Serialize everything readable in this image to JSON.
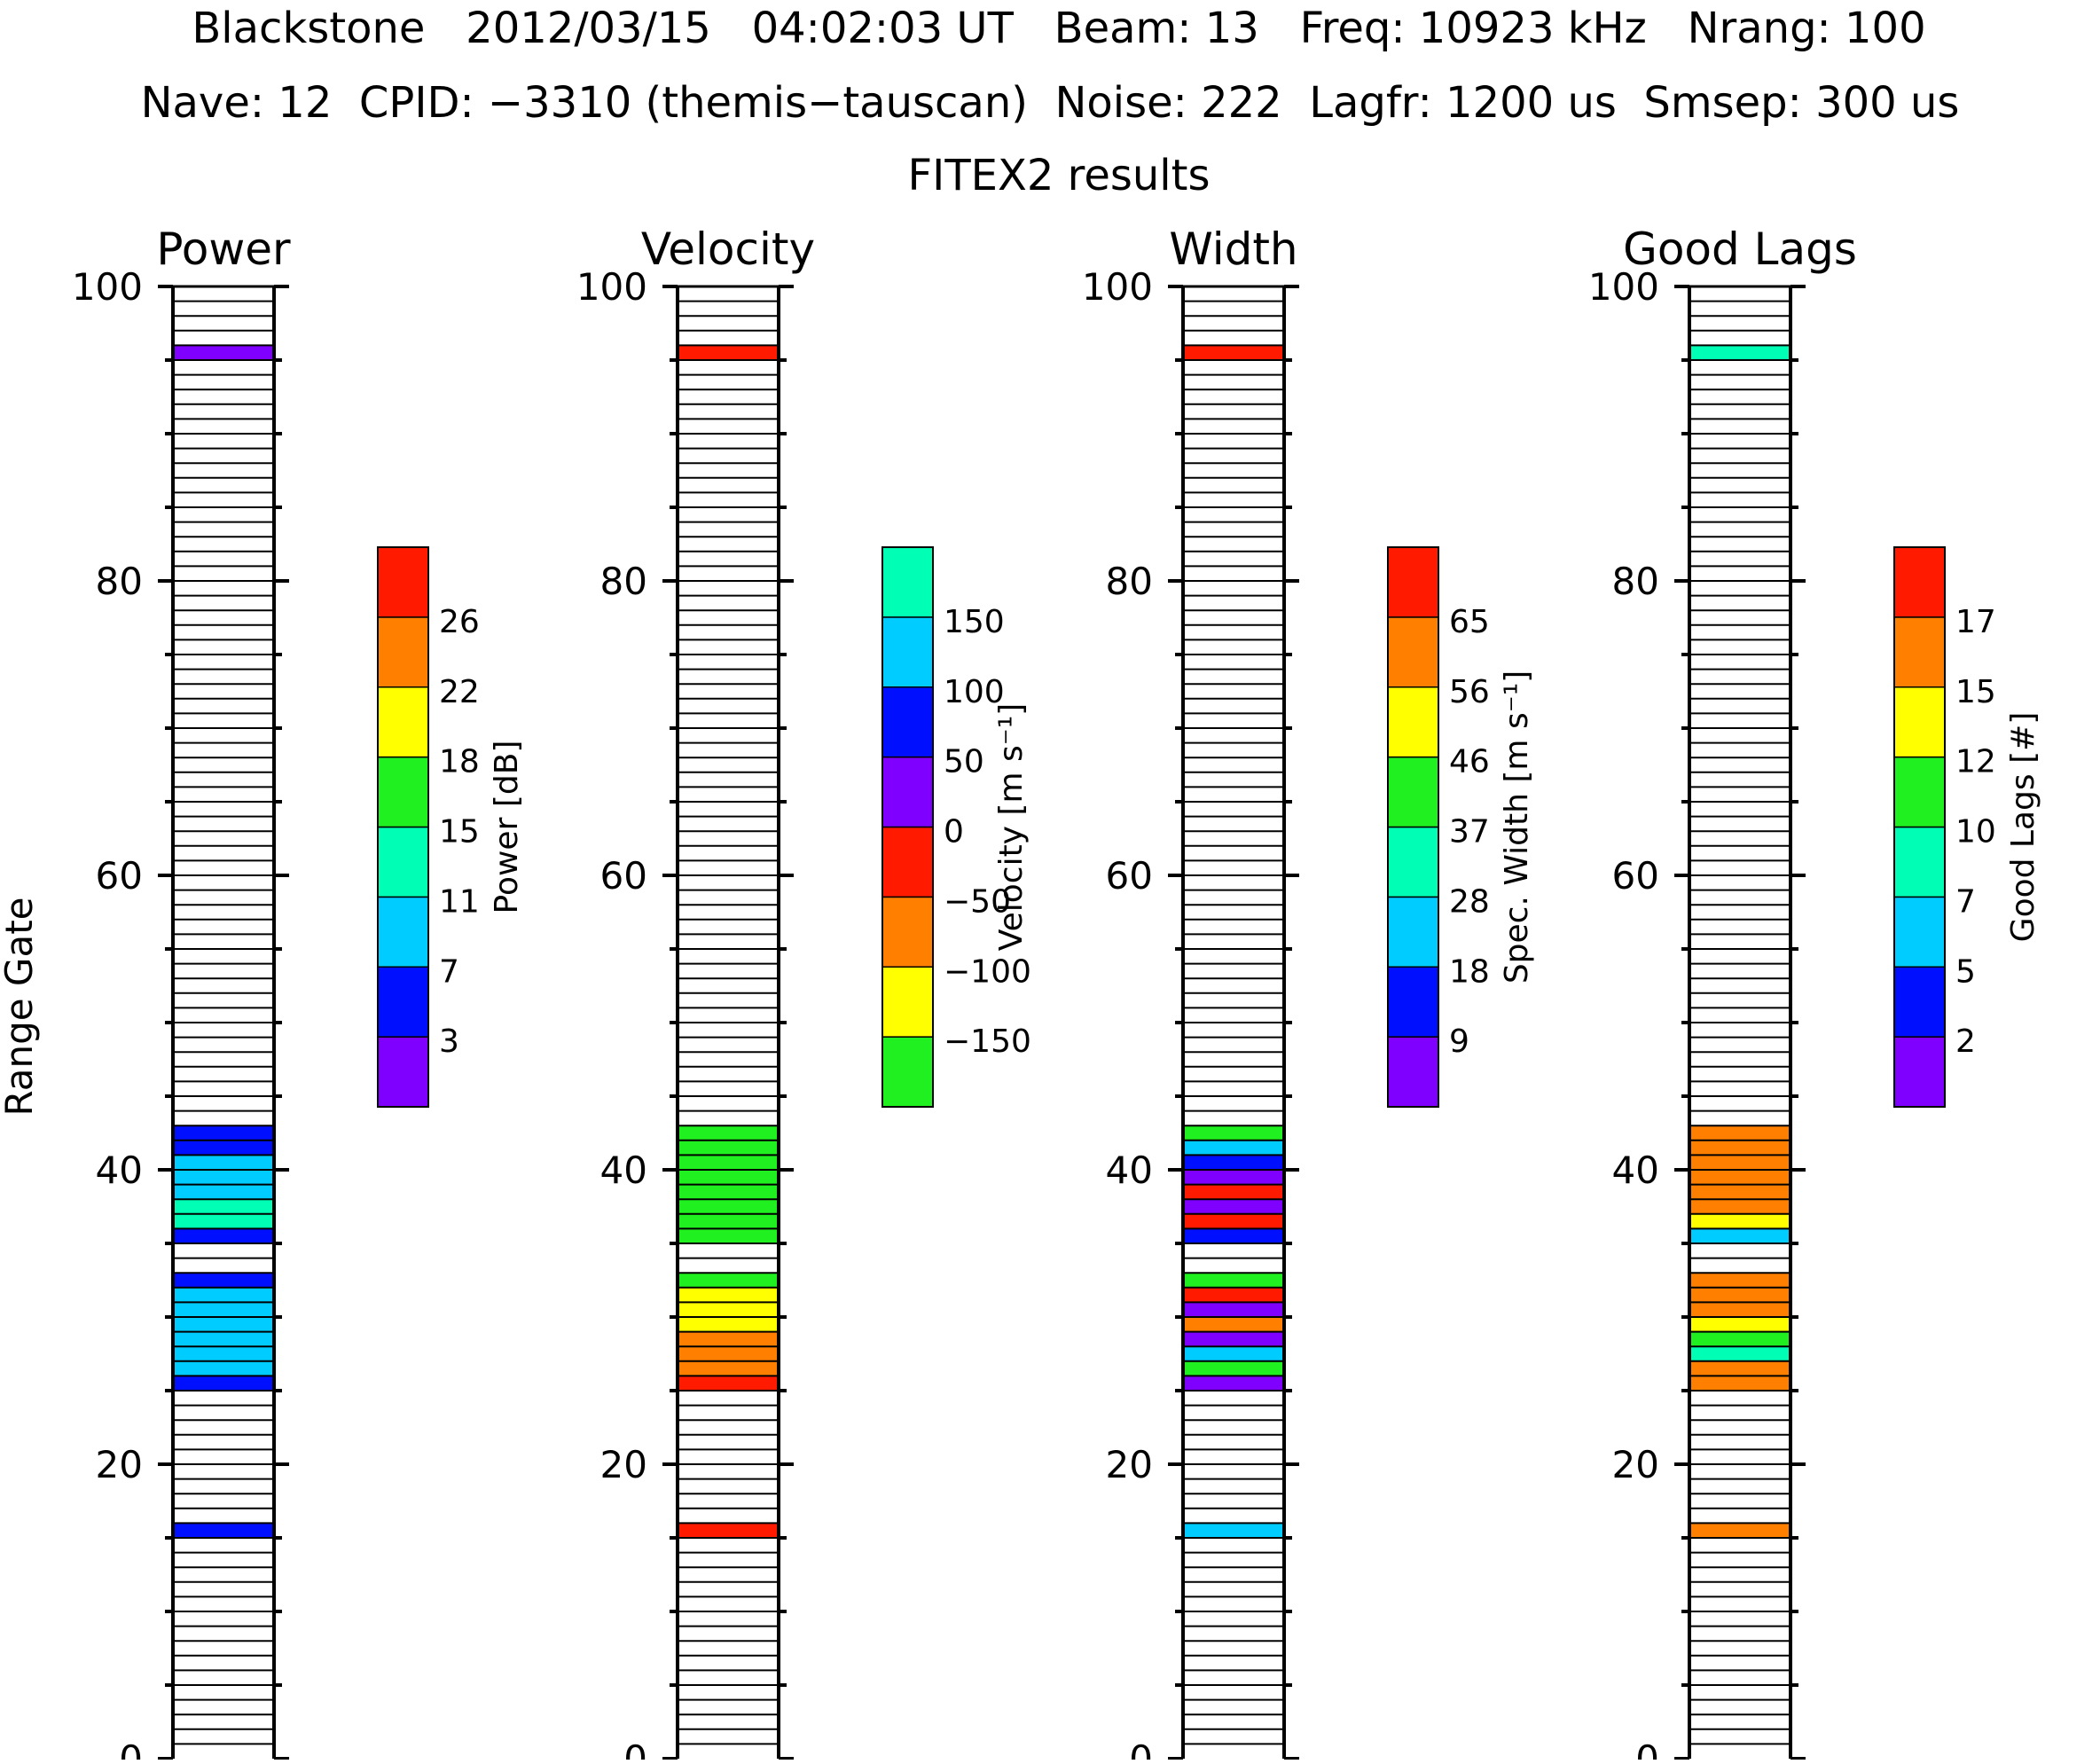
{
  "header": {
    "line1": "Blackstone   2012/03/15   04:02:03 UT   Beam: 13   Freq: 10923 kHz   Nrang: 100",
    "line2": "Nave: 12  CPID: −3310 (themis−tauscan)  Noise: 222  Lagfr: 1200 us  Smsep: 300 us",
    "line3": "FITEX2 results"
  },
  "y_axis_label": "Range Gate",
  "colors": {
    "purple": "#8000ff",
    "blue": "#0010ff",
    "cyan": "#00ccff",
    "teal": "#00ffb4",
    "green": "#20f020",
    "yellow": "#ffff00",
    "orange": "#ff8000",
    "red": "#ff1a00"
  },
  "chart_data": [
    {
      "type": "heatmap",
      "title": "Power",
      "xlabel": "",
      "ylabel": "Range Gate",
      "ylim": [
        0,
        100
      ],
      "yticks": [
        "0",
        "20",
        "40",
        "60",
        "80",
        "100"
      ],
      "colorbar": {
        "label": "Power [dB]",
        "colors": [
          "purple",
          "blue",
          "cyan",
          "teal",
          "green",
          "yellow",
          "orange",
          "red"
        ],
        "ticks": [
          "3",
          "7",
          "11",
          "15",
          "18",
          "22",
          "26"
        ]
      },
      "cells": [
        {
          "gate": 15,
          "color": "blue"
        },
        {
          "gate": 25,
          "color": "blue"
        },
        {
          "gate": 26,
          "color": "cyan"
        },
        {
          "gate": 27,
          "color": "cyan"
        },
        {
          "gate": 28,
          "color": "cyan"
        },
        {
          "gate": 29,
          "color": "cyan"
        },
        {
          "gate": 30,
          "color": "cyan"
        },
        {
          "gate": 31,
          "color": "cyan"
        },
        {
          "gate": 32,
          "color": "blue"
        },
        {
          "gate": 35,
          "color": "blue"
        },
        {
          "gate": 36,
          "color": "teal"
        },
        {
          "gate": 37,
          "color": "teal"
        },
        {
          "gate": 38,
          "color": "cyan"
        },
        {
          "gate": 39,
          "color": "cyan"
        },
        {
          "gate": 40,
          "color": "cyan"
        },
        {
          "gate": 41,
          "color": "blue"
        },
        {
          "gate": 42,
          "color": "blue"
        },
        {
          "gate": 95,
          "color": "purple"
        }
      ]
    },
    {
      "type": "heatmap",
      "title": "Velocity",
      "xlabel": "",
      "ylabel": "",
      "ylim": [
        0,
        100
      ],
      "yticks": [
        "0",
        "20",
        "40",
        "60",
        "80",
        "100"
      ],
      "colorbar": {
        "label": "Velocity [m s⁻¹]",
        "colors": [
          "green",
          "yellow",
          "orange",
          "red",
          "purple",
          "blue",
          "cyan",
          "teal"
        ],
        "ticks": [
          "−150",
          "−100",
          "−50",
          "0",
          "50",
          "100",
          "150"
        ]
      },
      "cells": [
        {
          "gate": 15,
          "color": "red"
        },
        {
          "gate": 25,
          "color": "red"
        },
        {
          "gate": 26,
          "color": "orange"
        },
        {
          "gate": 27,
          "color": "orange"
        },
        {
          "gate": 28,
          "color": "orange"
        },
        {
          "gate": 29,
          "color": "yellow"
        },
        {
          "gate": 30,
          "color": "yellow"
        },
        {
          "gate": 31,
          "color": "yellow"
        },
        {
          "gate": 32,
          "color": "green"
        },
        {
          "gate": 35,
          "color": "green"
        },
        {
          "gate": 36,
          "color": "green"
        },
        {
          "gate": 37,
          "color": "green"
        },
        {
          "gate": 38,
          "color": "green"
        },
        {
          "gate": 39,
          "color": "green"
        },
        {
          "gate": 40,
          "color": "green"
        },
        {
          "gate": 41,
          "color": "green"
        },
        {
          "gate": 42,
          "color": "green"
        },
        {
          "gate": 95,
          "color": "red"
        }
      ]
    },
    {
      "type": "heatmap",
      "title": "Width",
      "xlabel": "",
      "ylabel": "",
      "ylim": [
        0,
        100
      ],
      "yticks": [
        "0",
        "20",
        "40",
        "60",
        "80",
        "100"
      ],
      "colorbar": {
        "label": "Spec. Width [m s⁻¹]",
        "colors": [
          "purple",
          "blue",
          "cyan",
          "teal",
          "green",
          "yellow",
          "orange",
          "red"
        ],
        "ticks": [
          "9",
          "18",
          "28",
          "37",
          "46",
          "56",
          "65"
        ]
      },
      "cells": [
        {
          "gate": 15,
          "color": "cyan"
        },
        {
          "gate": 25,
          "color": "purple"
        },
        {
          "gate": 26,
          "color": "green"
        },
        {
          "gate": 27,
          "color": "cyan"
        },
        {
          "gate": 28,
          "color": "purple"
        },
        {
          "gate": 29,
          "color": "orange"
        },
        {
          "gate": 30,
          "color": "purple"
        },
        {
          "gate": 31,
          "color": "red"
        },
        {
          "gate": 32,
          "color": "green"
        },
        {
          "gate": 35,
          "color": "blue"
        },
        {
          "gate": 36,
          "color": "red"
        },
        {
          "gate": 37,
          "color": "purple"
        },
        {
          "gate": 38,
          "color": "red"
        },
        {
          "gate": 39,
          "color": "purple"
        },
        {
          "gate": 40,
          "color": "blue"
        },
        {
          "gate": 41,
          "color": "cyan"
        },
        {
          "gate": 42,
          "color": "green"
        },
        {
          "gate": 95,
          "color": "red"
        }
      ]
    },
    {
      "type": "heatmap",
      "title": "Good Lags",
      "xlabel": "",
      "ylabel": "",
      "ylim": [
        0,
        100
      ],
      "yticks": [
        "0",
        "20",
        "40",
        "60",
        "80",
        "100"
      ],
      "colorbar": {
        "label": "Good Lags [#]",
        "colors": [
          "purple",
          "blue",
          "cyan",
          "teal",
          "green",
          "yellow",
          "orange",
          "red"
        ],
        "ticks": [
          "2",
          "5",
          "7",
          "10",
          "12",
          "15",
          "17"
        ]
      },
      "cells": [
        {
          "gate": 15,
          "color": "orange"
        },
        {
          "gate": 25,
          "color": "orange"
        },
        {
          "gate": 26,
          "color": "orange"
        },
        {
          "gate": 27,
          "color": "teal"
        },
        {
          "gate": 28,
          "color": "green"
        },
        {
          "gate": 29,
          "color": "yellow"
        },
        {
          "gate": 30,
          "color": "orange"
        },
        {
          "gate": 31,
          "color": "orange"
        },
        {
          "gate": 32,
          "color": "orange"
        },
        {
          "gate": 35,
          "color": "cyan"
        },
        {
          "gate": 36,
          "color": "yellow"
        },
        {
          "gate": 37,
          "color": "orange"
        },
        {
          "gate": 38,
          "color": "orange"
        },
        {
          "gate": 39,
          "color": "orange"
        },
        {
          "gate": 40,
          "color": "orange"
        },
        {
          "gate": 41,
          "color": "orange"
        },
        {
          "gate": 42,
          "color": "orange"
        },
        {
          "gate": 95,
          "color": "teal"
        }
      ]
    }
  ]
}
